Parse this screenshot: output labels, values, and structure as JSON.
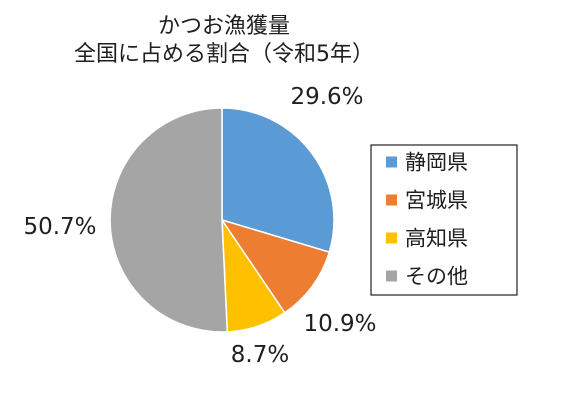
{
  "title_lines": [
    "かつお漁獲量",
    "全国に占める割合（令和5年）"
  ],
  "chart_data": {
    "type": "pie",
    "title": "かつお漁獲量 全国に占める割合（令和5年）",
    "categories": [
      "静岡県",
      "宮城県",
      "高知県",
      "その他"
    ],
    "values": [
      29.6,
      10.9,
      8.7,
      50.7
    ],
    "value_labels": [
      "29.6%",
      "10.9%",
      "8.7%",
      "50.7%"
    ],
    "colors": [
      "#5b9bd5",
      "#ed7d31",
      "#ffc000",
      "#a5a5a5"
    ],
    "start_angle_deg": 0,
    "direction": "clockwise",
    "legend": {
      "placement": "right",
      "entries": [
        "静岡県",
        "宮城県",
        "高知県",
        "その他"
      ]
    }
  }
}
